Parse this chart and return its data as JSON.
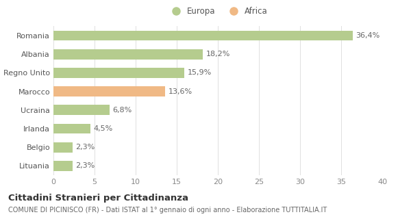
{
  "categories": [
    "Romania",
    "Albania",
    "Regno Unito",
    "Marocco",
    "Ucraina",
    "Irlanda",
    "Belgio",
    "Lituania"
  ],
  "values": [
    36.4,
    18.2,
    15.9,
    13.6,
    6.8,
    4.5,
    2.3,
    2.3
  ],
  "labels": [
    "36,4%",
    "18,2%",
    "15,9%",
    "13,6%",
    "6,8%",
    "4,5%",
    "2,3%",
    "2,3%"
  ],
  "colors": [
    "#b5cc8e",
    "#b5cc8e",
    "#b5cc8e",
    "#f0b985",
    "#b5cc8e",
    "#b5cc8e",
    "#b5cc8e",
    "#b5cc8e"
  ],
  "europa_color": "#b5cc8e",
  "africa_color": "#f0b985",
  "xlim": [
    0,
    40
  ],
  "xticks": [
    0,
    5,
    10,
    15,
    20,
    25,
    30,
    35,
    40
  ],
  "title": "Cittadini Stranieri per Cittadinanza",
  "subtitle": "COMUNE DI PICINISCO (FR) - Dati ISTAT al 1° gennaio di ogni anno - Elaborazione TUTTITALIA.IT",
  "legend_europa": "Europa",
  "legend_africa": "Africa",
  "bar_height": 0.55,
  "bg_color": "#ffffff",
  "grid_color": "#e0e0e0",
  "label_fontsize": 8,
  "tick_fontsize": 8,
  "title_fontsize": 9.5,
  "subtitle_fontsize": 7
}
